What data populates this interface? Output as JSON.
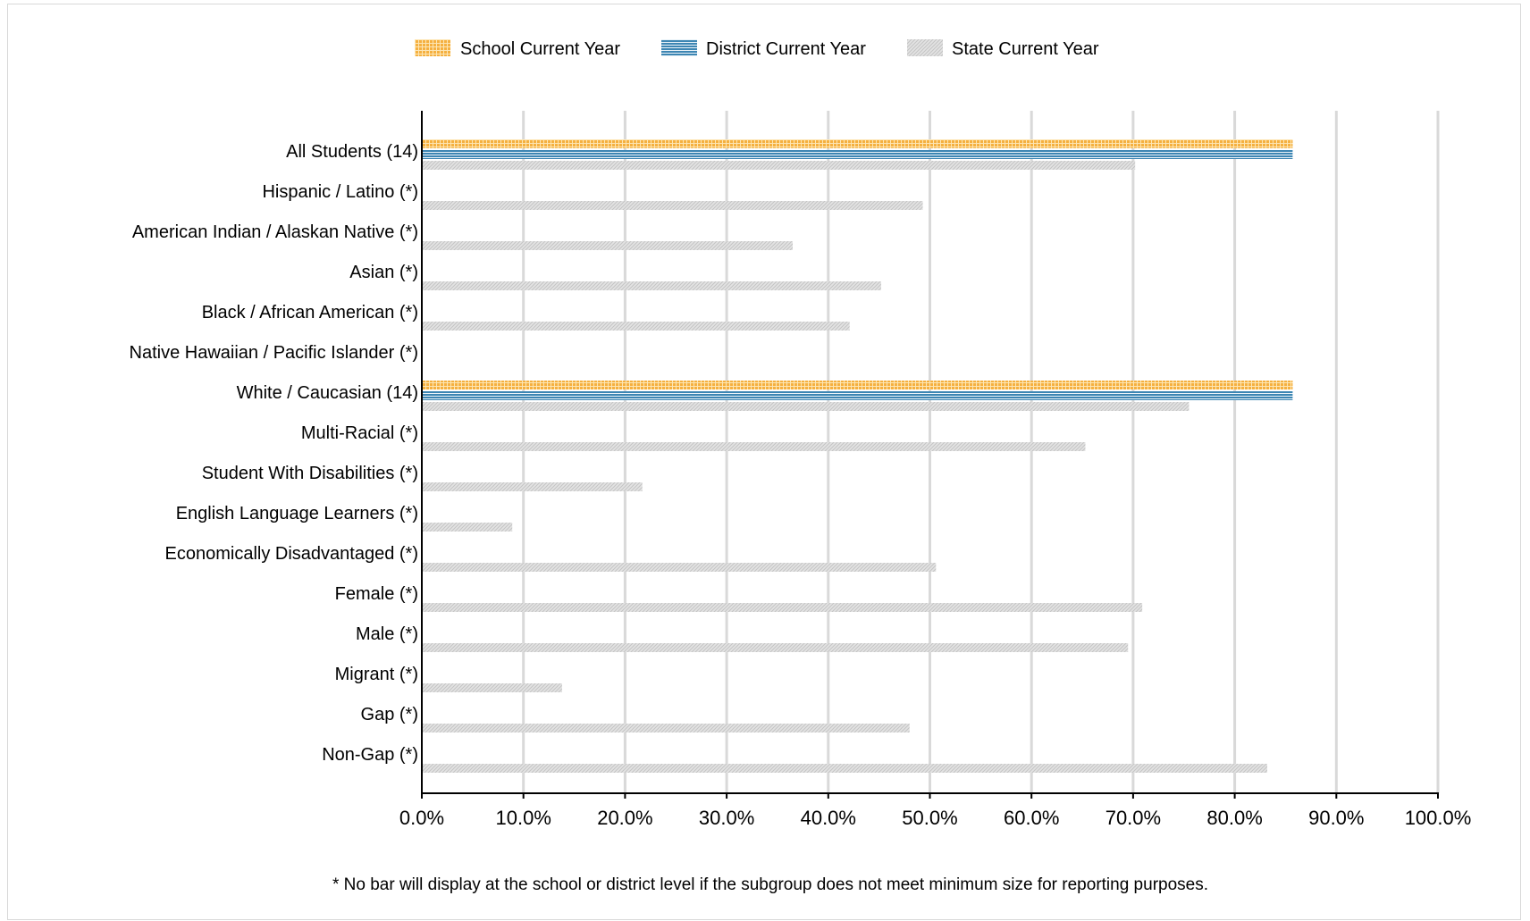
{
  "chart_data": {
    "type": "bar",
    "orientation": "horizontal",
    "categories": [
      "All Students (14)",
      "Hispanic / Latino (*)",
      "American Indian / Alaskan Native (*)",
      "Asian (*)",
      "Black / African American (*)",
      "Native Hawaiian / Pacific Islander (*)",
      "White / Caucasian (14)",
      "Multi-Racial (*)",
      "Student With Disabilities (*)",
      "English Language Learners (*)",
      "Economically Disadvantaged (*)",
      "Female (*)",
      "Male (*)",
      "Migrant (*)",
      "Gap (*)",
      "Non-Gap (*)"
    ],
    "series": [
      {
        "name": "School Current Year",
        "color": "#f5b040",
        "pattern": "grid",
        "values": [
          85.7,
          null,
          null,
          null,
          null,
          null,
          85.7,
          null,
          null,
          null,
          null,
          null,
          null,
          null,
          null,
          null
        ]
      },
      {
        "name": "District Current Year",
        "color": "#3d86b3",
        "pattern": "horizontal-lines",
        "values": [
          85.7,
          null,
          null,
          null,
          null,
          null,
          85.7,
          null,
          null,
          null,
          null,
          null,
          null,
          null,
          null,
          null
        ]
      },
      {
        "name": "State Current Year",
        "color": "#d3d3d3",
        "pattern": "diagonal-hatch",
        "values": [
          70.2,
          49.3,
          36.5,
          45.2,
          42.1,
          null,
          75.5,
          65.3,
          21.7,
          8.9,
          50.6,
          70.9,
          69.5,
          13.8,
          48.0,
          83.2
        ]
      }
    ],
    "xlim": [
      0,
      100
    ],
    "x_ticks": [
      "0.0%",
      "10.0%",
      "20.0%",
      "30.0%",
      "40.0%",
      "50.0%",
      "60.0%",
      "70.0%",
      "80.0%",
      "90.0%",
      "100.0%"
    ],
    "grid": true,
    "legend_position": "top-center",
    "footnote": "* No bar will display at the school or district level if the subgroup does not meet minimum size for reporting purposes."
  }
}
